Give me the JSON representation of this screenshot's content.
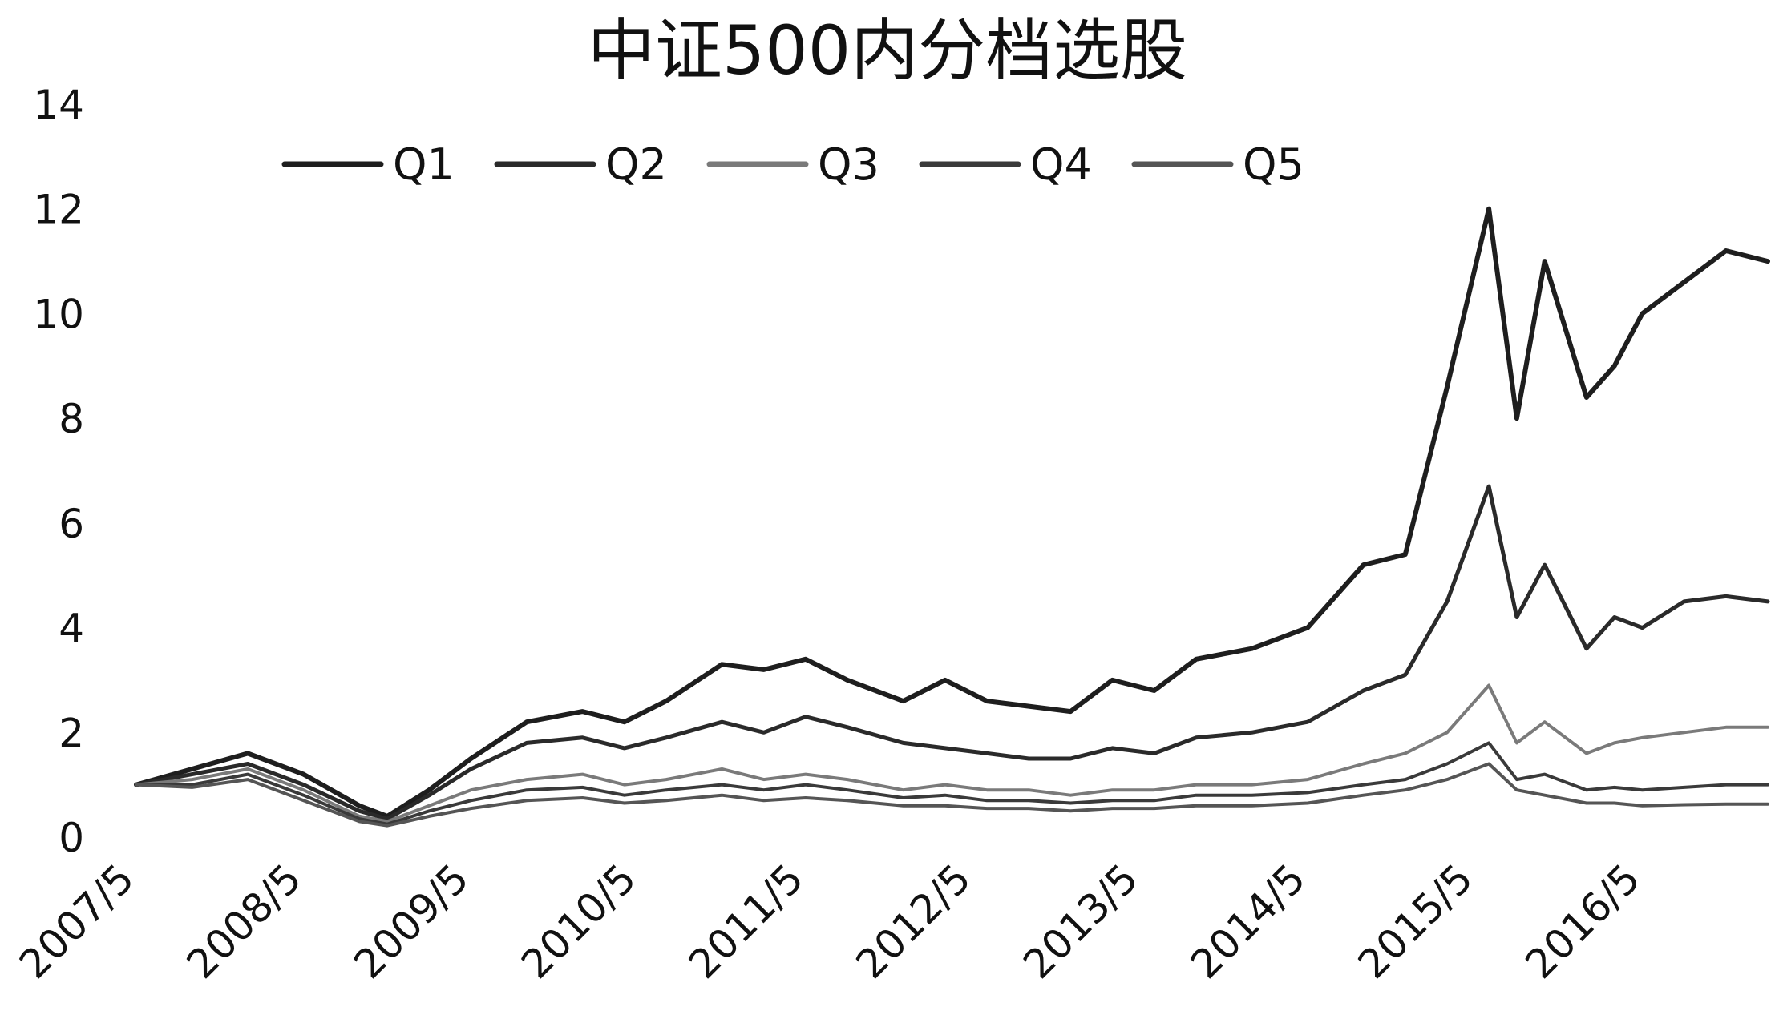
{
  "chart_data": {
    "type": "line",
    "title": "中证500内分档选股",
    "xlabel": "",
    "ylabel": "",
    "ylim": [
      0,
      14
    ],
    "yticks": [
      0,
      2,
      4,
      6,
      8,
      10,
      12,
      14
    ],
    "x_tick_labels": [
      "2007/5",
      "2008/5",
      "2009/5",
      "2010/5",
      "2011/5",
      "2012/5",
      "2013/5",
      "2014/5",
      "2015/5",
      "2016/5"
    ],
    "x_range": [
      "2007/5",
      "2017/2"
    ],
    "grid": false,
    "legend_position": "top",
    "x": [
      "2007/5",
      "2007/9",
      "2008/1",
      "2008/5",
      "2008/9",
      "2008/11",
      "2009/2",
      "2009/5",
      "2009/9",
      "2010/1",
      "2010/4",
      "2010/7",
      "2010/11",
      "2011/2",
      "2011/5",
      "2011/8",
      "2011/12",
      "2012/3",
      "2012/6",
      "2012/9",
      "2012/12",
      "2013/3",
      "2013/6",
      "2013/9",
      "2014/1",
      "2014/5",
      "2014/9",
      "2014/12",
      "2015/3",
      "2015/6",
      "2015/8",
      "2015/10",
      "2016/1",
      "2016/3",
      "2016/5",
      "2016/8",
      "2016/11",
      "2017/2"
    ],
    "series": [
      {
        "name": "Q1",
        "color": "#1e1e1e",
        "width": 6,
        "values": [
          1.0,
          1.3,
          1.6,
          1.2,
          0.6,
          0.4,
          0.9,
          1.5,
          2.2,
          2.4,
          2.2,
          2.6,
          3.3,
          3.2,
          3.4,
          3.0,
          2.6,
          3.0,
          2.6,
          2.5,
          2.4,
          3.0,
          2.8,
          3.4,
          3.6,
          4.0,
          5.2,
          5.4,
          8.6,
          12.0,
          8.0,
          11.0,
          8.4,
          9.0,
          10.0,
          10.6,
          11.2,
          11.0
        ]
      },
      {
        "name": "Q2",
        "color": "#2a2a2a",
        "width": 5,
        "values": [
          1.0,
          1.2,
          1.4,
          1.0,
          0.5,
          0.35,
          0.8,
          1.3,
          1.8,
          1.9,
          1.7,
          1.9,
          2.2,
          2.0,
          2.3,
          2.1,
          1.8,
          1.7,
          1.6,
          1.5,
          1.5,
          1.7,
          1.6,
          1.9,
          2.0,
          2.2,
          2.8,
          3.1,
          4.5,
          6.7,
          4.2,
          5.2,
          3.6,
          4.2,
          4.0,
          4.5,
          4.6,
          4.5
        ]
      },
      {
        "name": "Q3",
        "color": "#7a7a7a",
        "width": 4,
        "values": [
          1.0,
          1.1,
          1.3,
          0.9,
          0.4,
          0.3,
          0.6,
          0.9,
          1.1,
          1.2,
          1.0,
          1.1,
          1.3,
          1.1,
          1.2,
          1.1,
          0.9,
          1.0,
          0.9,
          0.9,
          0.8,
          0.9,
          0.9,
          1.0,
          1.0,
          1.1,
          1.4,
          1.6,
          2.0,
          2.9,
          1.8,
          2.2,
          1.6,
          1.8,
          1.9,
          2.0,
          2.1,
          2.1
        ]
      },
      {
        "name": "Q4",
        "color": "#3a3a3a",
        "width": 4,
        "values": [
          1.0,
          1.0,
          1.2,
          0.8,
          0.35,
          0.25,
          0.5,
          0.7,
          0.9,
          0.95,
          0.8,
          0.9,
          1.0,
          0.9,
          1.0,
          0.9,
          0.75,
          0.8,
          0.7,
          0.7,
          0.65,
          0.7,
          0.7,
          0.8,
          0.8,
          0.85,
          1.0,
          1.1,
          1.4,
          1.8,
          1.1,
          1.2,
          0.9,
          0.95,
          0.9,
          0.95,
          1.0,
          1.0
        ]
      },
      {
        "name": "Q5",
        "color": "#555555",
        "width": 4,
        "values": [
          1.0,
          0.95,
          1.1,
          0.7,
          0.3,
          0.22,
          0.4,
          0.55,
          0.7,
          0.75,
          0.65,
          0.7,
          0.8,
          0.7,
          0.75,
          0.7,
          0.6,
          0.6,
          0.55,
          0.55,
          0.5,
          0.55,
          0.55,
          0.6,
          0.6,
          0.65,
          0.8,
          0.9,
          1.1,
          1.4,
          0.9,
          0.8,
          0.65,
          0.65,
          0.6,
          0.62,
          0.63,
          0.63
        ]
      }
    ]
  }
}
